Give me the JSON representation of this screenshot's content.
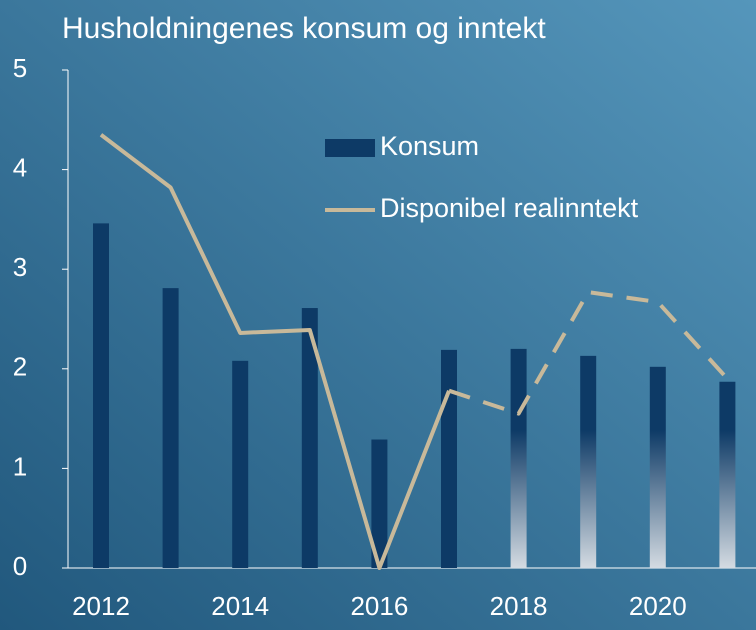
{
  "chart_data": {
    "type": "bar_line",
    "title": "Husholdningenes konsum og inntekt",
    "categories": [
      "2012",
      null,
      "2014",
      null,
      "2016",
      null,
      "2018",
      null,
      "2020",
      null
    ],
    "series": [
      {
        "name": "Konsum",
        "type": "bar",
        "color": "#0d3a66",
        "values": [
          3.46,
          2.81,
          2.08,
          2.61,
          1.29,
          2.19,
          2.2,
          2.13,
          2.02,
          1.87
        ]
      },
      {
        "name": "Disponibel realinntekt",
        "type": "line",
        "color": "#c8b99a",
        "values": [
          4.35,
          3.82,
          2.36,
          2.39,
          0.0,
          1.78,
          1.55,
          2.77,
          2.67,
          1.9
        ]
      }
    ],
    "forecast_from": "2018",
    "ylim": [
      0,
      5
    ],
    "yticks": [
      0,
      1,
      2,
      3,
      4,
      5
    ],
    "grid": false
  }
}
